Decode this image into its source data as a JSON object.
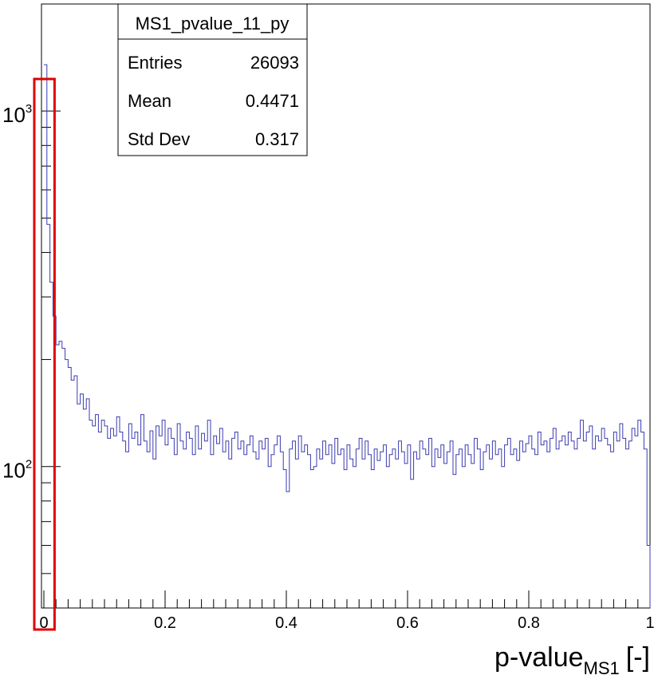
{
  "chart_data": {
    "type": "histogram",
    "title": "",
    "xlabel": "p-value",
    "xlabel_subscript": "MS1",
    "xlabel_suffix": "[-]",
    "ylabel": "",
    "y_scale": "log",
    "xlim": [
      0,
      1
    ],
    "ylim": [
      40,
      2000
    ],
    "x_ticks": [
      {
        "value": 0,
        "label": "0"
      },
      {
        "value": 0.2,
        "label": "0.2"
      },
      {
        "value": 0.4,
        "label": "0.4"
      },
      {
        "value": 0.6,
        "label": "0.6"
      },
      {
        "value": 0.8,
        "label": "0.8"
      },
      {
        "value": 1,
        "label": "1"
      }
    ],
    "y_ticks": [
      {
        "value": 100,
        "base": "10",
        "exp": "2"
      },
      {
        "value": 1000,
        "base": "10",
        "exp": "3"
      }
    ],
    "grid": false,
    "line_color": "#3b3bb0",
    "highlight_color": "#e00000",
    "highlight_x_range": [
      0,
      0.015
    ],
    "bin_width": 0.005,
    "values": [
      1350,
      480,
      330,
      265,
      220,
      225,
      215,
      200,
      190,
      175,
      180,
      150,
      160,
      145,
      155,
      135,
      130,
      140,
      125,
      135,
      130,
      120,
      128,
      122,
      138,
      125,
      118,
      110,
      132,
      120,
      125,
      115,
      140,
      118,
      110,
      126,
      105,
      130,
      122,
      135,
      115,
      128,
      120,
      108,
      132,
      118,
      112,
      125,
      120,
      108,
      130,
      112,
      124,
      118,
      135,
      108,
      122,
      116,
      128,
      110,
      118,
      105,
      120,
      125,
      112,
      118,
      108,
      115,
      122,
      110,
      105,
      118,
      112,
      120,
      100,
      108,
      115,
      122,
      110,
      98,
      85,
      112,
      118,
      105,
      122,
      110,
      115,
      108,
      98,
      100,
      112,
      105,
      118,
      108,
      115,
      102,
      120,
      108,
      112,
      98,
      115,
      105,
      100,
      112,
      120,
      105,
      118,
      108,
      98,
      112,
      104,
      110,
      115,
      100,
      108,
      112,
      105,
      118,
      110,
      102,
      115,
      92,
      110,
      105,
      118,
      112,
      108,
      120,
      100,
      112,
      106,
      115,
      102,
      110,
      118,
      95,
      108,
      112,
      100,
      115,
      108,
      102,
      120,
      112,
      98,
      110,
      115,
      105,
      118,
      108,
      112,
      100,
      115,
      120,
      108,
      112,
      104,
      118,
      110,
      116,
      122,
      112,
      108,
      125,
      115,
      118,
      110,
      120,
      128,
      112,
      118,
      122,
      115,
      125,
      118,
      112,
      120,
      135,
      118,
      125,
      130,
      112,
      122,
      118,
      128,
      120,
      115,
      110,
      125,
      118,
      132,
      120,
      112,
      118,
      128,
      122,
      135,
      125,
      112,
      60
    ],
    "stats": {
      "name": "MS1_pvalue_11_py",
      "rows": [
        {
          "label": "Entries",
          "value": "26093"
        },
        {
          "label": "Mean",
          "value": "0.4471"
        },
        {
          "label": "Std Dev",
          "value": "0.317"
        }
      ]
    }
  }
}
